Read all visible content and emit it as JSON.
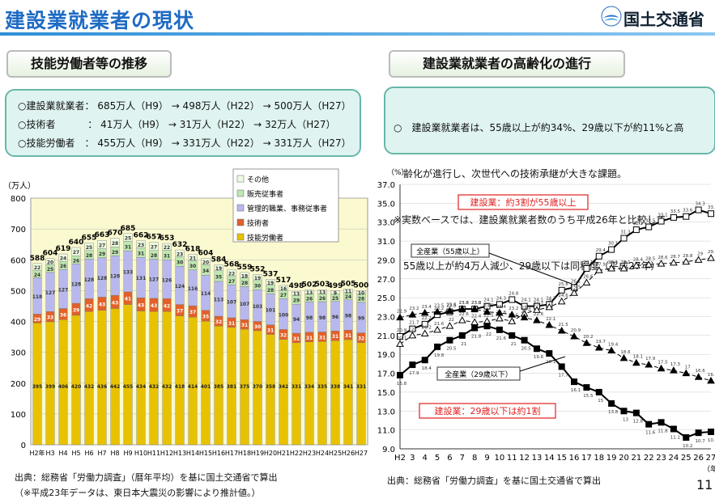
{
  "header": {
    "title": "建設業就業者の現状",
    "logo_text": "国土交通省"
  },
  "left": {
    "section_title": "技能労働者等の推移",
    "summary": [
      {
        "label": "○建設業就業者：",
        "values": "685万人（H9） → 498万人（H22） → 500万人（H27）"
      },
      {
        "label": "○技術者　　　 ：",
        "values": "41万人（H9） → 31万人（H22） → 32万人（H27）"
      },
      {
        "label": "○技能労働者　：",
        "values": "455万人（H9） → 331万人（H22） → 331万人（H27）"
      }
    ],
    "source": "出典：総務省「労働力調査」（暦年平均）を基に国土交通省で算出",
    "note": "（※平成23年データは、東日本大震災の影響により推計値。）"
  },
  "right": {
    "section_title": "建設業就業者の高齢化の進行",
    "summary_lines": [
      "○　建設業就業者は、55歳以上が約34%、29歳以下が約11%と高",
      "　齢化が進行し、次世代への技術承継が大きな課題。",
      "※実数ベースでは、建設業就業者数のうち平成26年と比較して",
      "　55歳以上が約4万人減少、29歳以下は同程度（平成27年）"
    ],
    "source": "出典：総務省「労働力調査」を基に国土交通省で算出",
    "page_number": "11"
  },
  "chart_data": [
    {
      "type": "bar",
      "stacked": true,
      "ylabel": "（万人）",
      "ylim": [
        0,
        800
      ],
      "yticks": [
        0,
        100,
        200,
        300,
        400,
        500,
        600,
        700,
        800
      ],
      "categories": [
        "H2年",
        "H3",
        "H4",
        "H5",
        "H6",
        "H7",
        "H8",
        "H9",
        "H10",
        "H11",
        "H12",
        "H13",
        "H14",
        "H15",
        "H16",
        "H17",
        "H18",
        "H19",
        "H20",
        "H21",
        "H22",
        "H23",
        "H24",
        "H25",
        "H26",
        "H27"
      ],
      "totals": [
        588,
        604,
        619,
        640,
        655,
        663,
        670,
        685,
        662,
        657,
        653,
        632,
        618,
        604,
        584,
        568,
        559,
        552,
        537,
        517,
        498,
        502,
        503,
        499,
        505,
        500
      ],
      "legend": [
        "その他",
        "販売従事者",
        "管理的職業、事務従事者",
        "技術者",
        "技能労働者"
      ],
      "series": [
        {
          "name": "技能労働者",
          "color": "#e8c200",
          "values": [
            395,
            399,
            406,
            420,
            432,
            436,
            442,
            455,
            434,
            432,
            432,
            418,
            414,
            401,
            385,
            381,
            375,
            370,
            358,
            342,
            331,
            334,
            335,
            338,
            341,
            331
          ]
        },
        {
          "name": "技術者",
          "color": "#e2602a",
          "values": [
            29,
            33,
            36,
            39,
            42,
            43,
            43,
            41,
            43,
            43,
            42,
            37,
            37,
            35,
            32,
            31,
            31,
            30,
            31,
            32,
            31,
            31,
            31,
            31,
            31,
            32
          ]
        },
        {
          "name": "管理的職業、事務従事者",
          "color": "#b8b8ef",
          "values": [
            118,
            127,
            127,
            128,
            128,
            128,
            128,
            133,
            131,
            127,
            126,
            124,
            116,
            114,
            113,
            107,
            107,
            103,
            101,
            100,
            94,
            98,
            98,
            96,
            98,
            99
          ]
        },
        {
          "name": "販売従事者",
          "color": "#bfe7b0",
          "values": [
            24,
            25,
            26,
            26,
            28,
            29,
            29,
            31,
            31,
            28,
            31,
            30,
            30,
            34,
            35,
            27,
            28,
            30,
            28,
            27,
            29,
            26,
            26,
            25,
            24,
            28
          ]
        },
        {
          "name": "その他",
          "color": "#eefbe3",
          "values": [
            22,
            20,
            24,
            27,
            25,
            27,
            28,
            25,
            23,
            27,
            22,
            23,
            21,
            20,
            19,
            22,
            18,
            19,
            19,
            16,
            13,
            13,
            13,
            9,
            11,
            10
          ]
        }
      ]
    },
    {
      "type": "line",
      "ylabel": "（%）",
      "xlabel": "（年）",
      "ylim": [
        9,
        37
      ],
      "yticks": [
        "9.0",
        "11.0",
        "13.0",
        "15.0",
        "17.0",
        "19.0",
        "21.0",
        "23.0",
        "25.0",
        "27.0",
        "29.0",
        "31.0",
        "33.0",
        "35.0",
        "37.0"
      ],
      "x": [
        "H2",
        "3",
        "4",
        "5",
        "6",
        "7",
        "8",
        "9",
        "10",
        "11",
        "12",
        "13",
        "14",
        "15",
        "16",
        "17",
        "18",
        "19",
        "20",
        "21",
        "22",
        "23",
        "24",
        "25",
        "26",
        "27"
      ],
      "series": [
        {
          "name": "建設業（55歳以上）",
          "marker": "square-open",
          "dash": false,
          "values": [
            20.9,
            21.7,
            22.2,
            23.2,
            23.5,
            23.8,
            23.8,
            24.1,
            24.3,
            24.8,
            24.1,
            24.1,
            24.3,
            25.8,
            26.1,
            28.1,
            29.4,
            30.1,
            31.3,
            32.2,
            32.5,
            33.1,
            33.5,
            33.6,
            34.3,
            33.9
          ]
        },
        {
          "name": "全産業（55歳以上）",
          "marker": "triangle-open",
          "dash": true,
          "values": [
            20.1,
            21.0,
            21.2,
            21.6,
            22.0,
            22.6,
            22.4,
            22.5,
            22.8,
            22.5,
            23.3,
            23.7,
            24.0,
            24.6,
            25.5,
            26.6,
            27.9,
            28.1,
            28.1,
            28.4,
            28.5,
            28.6,
            28.7,
            28.8,
            29.0,
            29.2
          ]
        },
        {
          "name": "全産業（29歳以下）",
          "marker": "triangle-solid",
          "dash": true,
          "values": [
            22.9,
            23.2,
            23.4,
            23.5,
            23.6,
            23.8,
            23.8,
            23.5,
            23.4,
            23.2,
            22.9,
            22.6,
            22.1,
            21.5,
            20.9,
            20.2,
            19.7,
            19.4,
            18.6,
            18.1,
            17.9,
            17.5,
            17.3,
            17.0,
            16.6,
            16.2
          ]
        },
        {
          "name": "建設業（29歳以下）",
          "marker": "square-solid",
          "dash": false,
          "values": [
            16.8,
            17.9,
            18.4,
            19.8,
            20.5,
            21.0,
            21.8,
            22.0,
            21.6,
            21.0,
            20.5,
            19.6,
            19.1,
            17.7,
            16.1,
            15.5,
            15.0,
            13.8,
            13.0,
            12.8,
            11.6,
            11.8,
            11.1,
            10.2,
            10.7,
            10.8
          ]
        }
      ],
      "annotations": [
        {
          "text": "建設業：約3割が55歳以上",
          "style": "red-box"
        },
        {
          "text": "全産業（55歳以上）",
          "style": "box"
        },
        {
          "text": "全産業（29歳以下）",
          "style": "box"
        },
        {
          "text": "建設業：29歳以下は約1割",
          "style": "red-box"
        }
      ]
    }
  ],
  "colors": {
    "title_blue": "#1e6bc4",
    "box_teal": "#dff4f1",
    "accent_red": "#e02020"
  }
}
